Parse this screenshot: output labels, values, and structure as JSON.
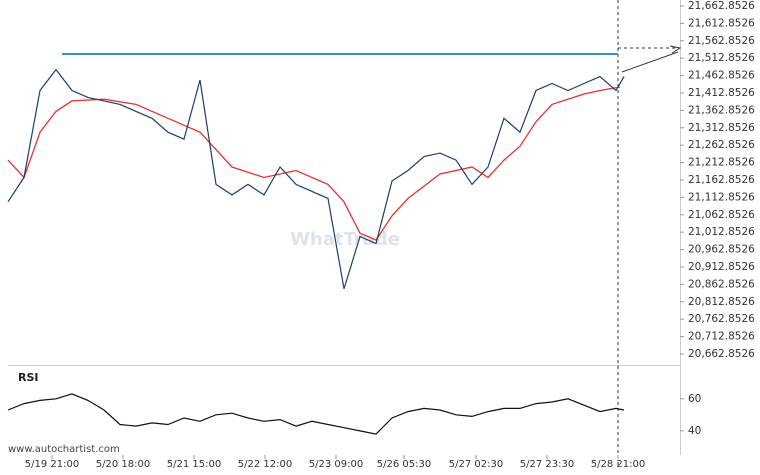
{
  "chart_data": [
    {
      "type": "line",
      "xlim": [
        0,
        168
      ],
      "x": [
        0,
        4,
        8,
        12,
        16,
        20,
        24,
        28,
        32,
        36,
        40,
        44,
        48,
        52,
        56,
        60,
        64,
        68,
        72,
        76,
        80,
        84,
        88,
        92,
        96,
        100,
        104,
        108,
        112,
        116,
        120,
        124,
        128,
        132,
        136,
        140,
        144,
        148,
        152,
        154
      ],
      "xticks": [
        {
          "value": 11,
          "label": "5/19 21:00"
        },
        {
          "value": 28.75,
          "label": "5/20 18:00"
        },
        {
          "value": 46.5,
          "label": "5/21 15:00"
        },
        {
          "value": 64.25,
          "label": "5/22 12:00"
        },
        {
          "value": 82,
          "label": "5/23 09:00"
        },
        {
          "value": 99,
          "label": "5/26 05:30"
        },
        {
          "value": 117,
          "label": "5/27 02:30"
        },
        {
          "value": 134.75,
          "label": "5/27 23:30"
        },
        {
          "value": 152.5,
          "label": "5/28 21:00"
        }
      ],
      "ylim": [
        20630,
        21680
      ],
      "yticks": [
        {
          "value": 20662.8526,
          "label": "20,662.8526"
        },
        {
          "value": 20712.8526,
          "label": "20,712.8526"
        },
        {
          "value": 20762.8526,
          "label": "20,762.8526"
        },
        {
          "value": 20812.8526,
          "label": "20,812.8526"
        },
        {
          "value": 20862.8526,
          "label": "20,862.8526"
        },
        {
          "value": 20912.8526,
          "label": "20,912.8526"
        },
        {
          "value": 20962.8526,
          "label": "20,962.8526"
        },
        {
          "value": 21012.8526,
          "label": "21,012.8526"
        },
        {
          "value": 21062.8526,
          "label": "21,062.8526"
        },
        {
          "value": 21112.8526,
          "label": "21,112.8526"
        },
        {
          "value": 21162.8526,
          "label": "21,162.8526"
        },
        {
          "value": 21212.8526,
          "label": "21,212.8526"
        },
        {
          "value": 21262.8526,
          "label": "21,262.8526"
        },
        {
          "value": 21312.8526,
          "label": "21,312.8526"
        },
        {
          "value": 21362.8526,
          "label": "21,362.8526"
        },
        {
          "value": 21412.8526,
          "label": "21,412.8526"
        },
        {
          "value": 21462.8526,
          "label": "21,462.8526"
        },
        {
          "value": 21512.8526,
          "label": "21,512.8526"
        },
        {
          "value": 21562.8526,
          "label": "21,562.8526"
        },
        {
          "value": 21612.8526,
          "label": "21,612.8526"
        },
        {
          "value": 21662.8526,
          "label": "21,662.8526"
        }
      ],
      "series": [
        {
          "color": "#1c3d6e",
          "values": [
            21100,
            21170,
            21420,
            21480,
            21420,
            21400,
            21390,
            21380,
            21360,
            21340,
            21300,
            21280,
            21450,
            21150,
            21120,
            21150,
            21120,
            21200,
            21150,
            21130,
            21110,
            20850,
            21000,
            20980,
            21160,
            21190,
            21230,
            21240,
            21220,
            21150,
            21200,
            21340,
            21300,
            21420,
            21440,
            21420,
            21440,
            21460,
            21420,
            21460
          ]
        }
      ],
      "ma": {
        "color": "#e8322c",
        "x": [
          0,
          4,
          8,
          12,
          16,
          24,
          32,
          40,
          48,
          52,
          56,
          64,
          72,
          80,
          84,
          88,
          92,
          96,
          100,
          108,
          116,
          120,
          124,
          128,
          132,
          136,
          144,
          148,
          153
        ],
        "values": [
          21220,
          21170,
          21300,
          21360,
          21390,
          21395,
          21380,
          21340,
          21300,
          21250,
          21200,
          21170,
          21190,
          21150,
          21100,
          21010,
          20990,
          21060,
          21110,
          21180,
          21200,
          21170,
          21220,
          21260,
          21330,
          21380,
          21410,
          21420,
          21430
        ]
      },
      "level": {
        "value": 21525,
        "color": "#3a8fd0",
        "x": [
          13.5,
          152.5
        ]
      },
      "watermark": "WhatTrade",
      "footer": "www.autochartist.com"
    },
    {
      "type": "line",
      "title": "RSI",
      "xlim": [
        0,
        168
      ],
      "x": [
        0,
        4,
        8,
        12,
        16,
        20,
        24,
        28,
        32,
        36,
        40,
        44,
        48,
        52,
        56,
        60,
        64,
        68,
        72,
        76,
        80,
        84,
        88,
        92,
        96,
        100,
        104,
        108,
        112,
        116,
        120,
        124,
        128,
        132,
        136,
        140,
        144,
        148,
        152,
        154
      ],
      "ylim": [
        25,
        81
      ],
      "yticks": [
        40,
        60
      ],
      "series": [
        {
          "color": "#111111",
          "values": [
            53,
            57,
            59,
            60,
            63,
            59,
            53,
            44,
            43,
            45,
            44,
            48,
            46,
            50,
            51,
            48,
            46,
            47,
            43,
            46,
            44,
            42,
            40,
            38,
            48,
            52,
            54,
            53,
            50,
            49,
            52,
            54,
            54,
            57,
            58,
            60,
            56,
            52,
            54,
            53
          ]
        }
      ]
    }
  ]
}
